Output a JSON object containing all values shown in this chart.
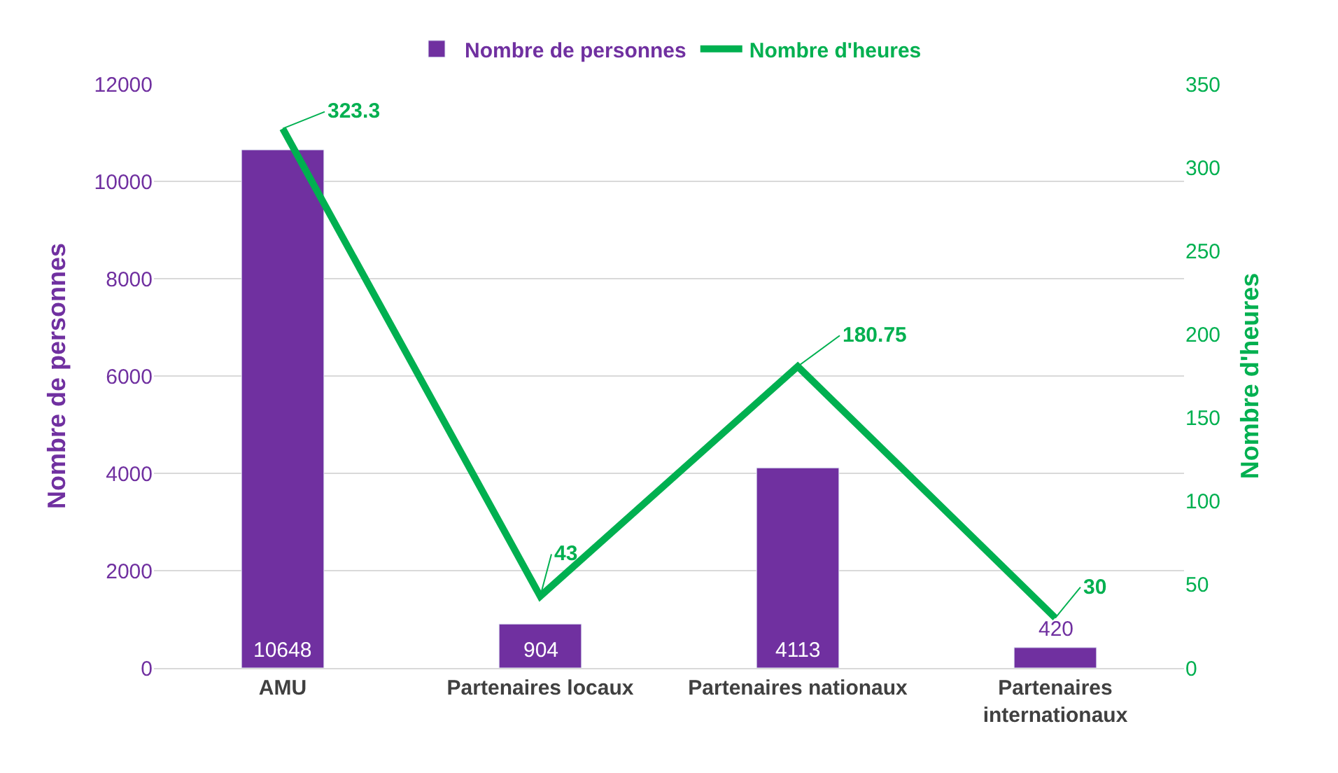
{
  "chart_data": {
    "type": "bar",
    "ylabel": "Nombre de personnes",
    "y2label": "Nombre d'heures",
    "categories": [
      "AMU",
      "Partenaires locaux",
      "Partenaires nationaux",
      "Partenaires internationaux"
    ],
    "series": [
      {
        "name": "Nombre de personnes",
        "color": "#7030a0",
        "values": [
          10648,
          904,
          4113,
          420
        ]
      },
      {
        "name": "Nombre d'heures",
        "type": "line",
        "axis": "y2",
        "color": "#00b050",
        "values": [
          323.3,
          43,
          180.75,
          30
        ]
      }
    ],
    "ylim": [
      0,
      12000
    ],
    "yticks": [
      0,
      2000,
      4000,
      6000,
      8000,
      10000,
      12000
    ],
    "y2lim": [
      0,
      350
    ],
    "y2ticks": [
      0,
      50,
      100,
      150,
      200,
      250,
      300,
      350
    ],
    "grid": "y",
    "legend": "top",
    "data_labels": true,
    "marker": "none"
  }
}
